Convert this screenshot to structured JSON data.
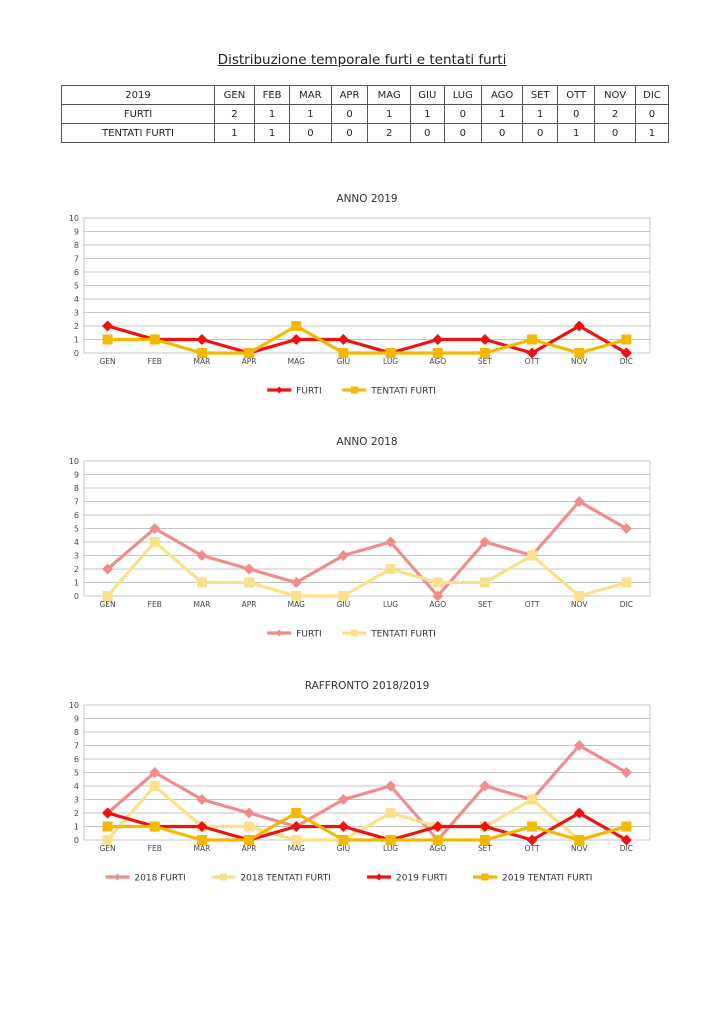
{
  "document": {
    "title": "Distribuzione temporale furti e tentati furti"
  },
  "table": {
    "header_label": "2019",
    "months": [
      "GEN",
      "FEB",
      "MAR",
      "APR",
      "MAG",
      "GIU",
      "LUG",
      "AGO",
      "SET",
      "OTT",
      "NOV",
      "DIC"
    ],
    "rows": [
      {
        "label": "FURTI",
        "values": [
          2,
          1,
          1,
          0,
          1,
          1,
          0,
          1,
          1,
          0,
          2,
          0
        ]
      },
      {
        "label": "TENTATI FURTI",
        "values": [
          1,
          1,
          0,
          0,
          2,
          0,
          0,
          0,
          0,
          1,
          0,
          1
        ]
      }
    ]
  },
  "chart_data": [
    {
      "type": "line",
      "title": "ANNO 2019",
      "categories": [
        "GEN",
        "FEB",
        "MAR",
        "APR",
        "MAG",
        "GIU",
        "LUG",
        "AGO",
        "SET",
        "OTT",
        "NOV",
        "DIC"
      ],
      "ylim": [
        0,
        10
      ],
      "yticks": [
        0,
        1,
        2,
        3,
        4,
        5,
        6,
        7,
        8,
        9,
        10
      ],
      "grid": true,
      "legend": "bottom",
      "series": [
        {
          "name": "FURTI",
          "values": [
            2,
            1,
            1,
            0,
            1,
            1,
            0,
            1,
            1,
            0,
            2,
            0
          ],
          "color": "#ee1111",
          "marker": "diamond"
        },
        {
          "name": "TENTATI FURTI",
          "values": [
            1,
            1,
            0,
            0,
            2,
            0,
            0,
            0,
            0,
            1,
            0,
            1
          ],
          "color": "#f5b800",
          "marker": "square"
        }
      ]
    },
    {
      "type": "line",
      "title": "ANNO 2018",
      "categories": [
        "GEN",
        "FEB",
        "MAR",
        "APR",
        "MAG",
        "GIU",
        "LUG",
        "AGO",
        "SET",
        "OTT",
        "NOV",
        "DIC"
      ],
      "ylim": [
        0,
        10
      ],
      "yticks": [
        0,
        1,
        2,
        3,
        4,
        5,
        6,
        7,
        8,
        9,
        10
      ],
      "grid": true,
      "legend": "bottom",
      "series": [
        {
          "name": "FURTI",
          "values": [
            2,
            5,
            3,
            2,
            1,
            3,
            4,
            0,
            4,
            3,
            7,
            5
          ],
          "color": "#f08c8c",
          "marker": "diamond"
        },
        {
          "name": "TENTATI FURTI",
          "values": [
            0,
            4,
            1,
            1,
            0,
            0,
            2,
            1,
            1,
            3,
            0,
            1
          ],
          "color": "#fae08a",
          "marker": "square"
        }
      ]
    },
    {
      "type": "line",
      "title": "RAFFRONTO 2018/2019",
      "categories": [
        "GEN",
        "FEB",
        "MAR",
        "APR",
        "MAG",
        "GIU",
        "LUG",
        "AGO",
        "SET",
        "OTT",
        "NOV",
        "DIC"
      ],
      "ylim": [
        0,
        10
      ],
      "yticks": [
        0,
        1,
        2,
        3,
        4,
        5,
        6,
        7,
        8,
        9,
        10
      ],
      "grid": true,
      "legend": "bottom",
      "series": [
        {
          "name": "2018 FURTI",
          "values": [
            2,
            5,
            3,
            2,
            1,
            3,
            4,
            0,
            4,
            3,
            7,
            5
          ],
          "color": "#f08c8c",
          "marker": "diamond"
        },
        {
          "name": "2018 TENTATI FURTI",
          "values": [
            0,
            4,
            1,
            1,
            0,
            0,
            2,
            1,
            1,
            3,
            0,
            1
          ],
          "color": "#fae08a",
          "marker": "square"
        },
        {
          "name": "2019 FURTI",
          "values": [
            2,
            1,
            1,
            0,
            1,
            1,
            0,
            1,
            1,
            0,
            2,
            0
          ],
          "color": "#ee1111",
          "marker": "diamond"
        },
        {
          "name": "2019 TENTATI FURTI",
          "values": [
            1,
            1,
            0,
            0,
            2,
            0,
            0,
            0,
            0,
            1,
            0,
            1
          ],
          "color": "#f5b800",
          "marker": "square"
        }
      ]
    }
  ]
}
